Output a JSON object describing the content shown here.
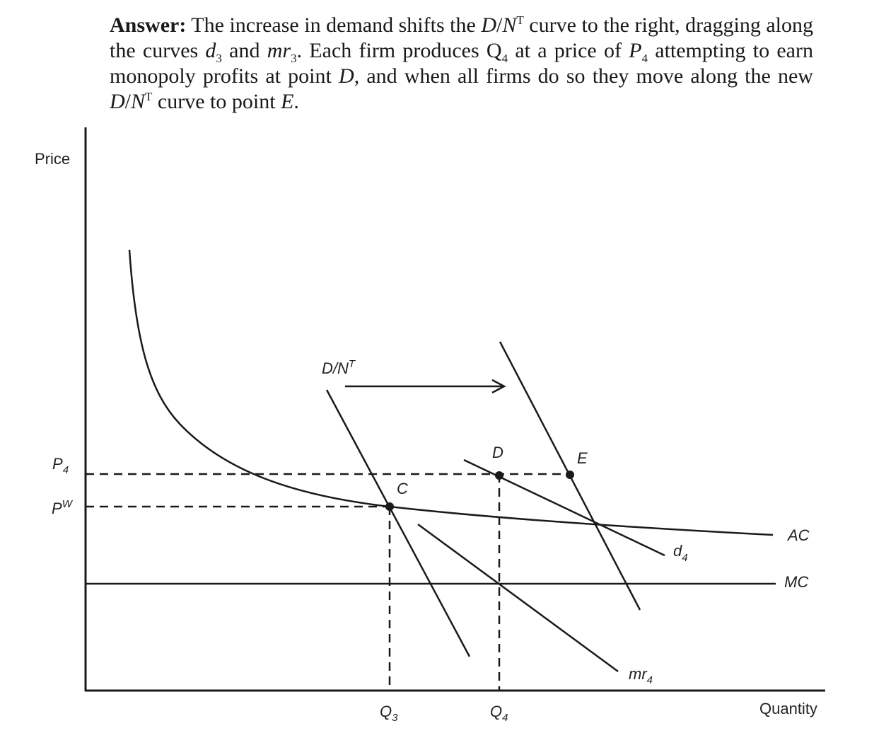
{
  "answer": {
    "lead": "Answer:",
    "s1": " The increase in demand shifts the ",
    "dn_d": "D",
    "dn_slash": "/",
    "dn_n": "N",
    "dn_t": "T",
    "s2": " curve to the right, dragging along the curves ",
    "d_base": "d",
    "d_sub": "3",
    "s3": " and ",
    "mr_base": "mr",
    "mr_sub": "3",
    "s4": ". Each firm produces ",
    "q_base": "Q",
    "q_sub": "4",
    "s5": " at a price of ",
    "p_base": "P",
    "p_sub": "4",
    "s6": " attempting to earn monopoly profits at point ",
    "pt_d": "D",
    "s7": ", and when all firms do so they move along the new ",
    "dn2_d": "D",
    "dn2_slash": "/",
    "dn2_n": "N",
    "dn2_t": "T",
    "s8": " curve to point ",
    "pt_e": "E",
    "s9": "."
  },
  "diagram": {
    "y_axis_label": "Price",
    "x_axis_label": "Quantity",
    "p4_base": "P",
    "p4_sub": "4",
    "pw_base": "P",
    "pw_sup": "W",
    "q3_base": "Q",
    "q3_sub": "3",
    "q4_base": "Q",
    "q4_sub": "4",
    "dn_label_base": "D/N",
    "dn_label_sup": "T",
    "point_c": "C",
    "point_d": "D",
    "point_e": "E",
    "ac_label": "AC",
    "mc_label": "MC",
    "d4_base": "d",
    "d4_sub": "4",
    "mr4_base": "mr",
    "mr4_sub": "4"
  },
  "colors": {
    "ink": "#1a1a1a"
  }
}
